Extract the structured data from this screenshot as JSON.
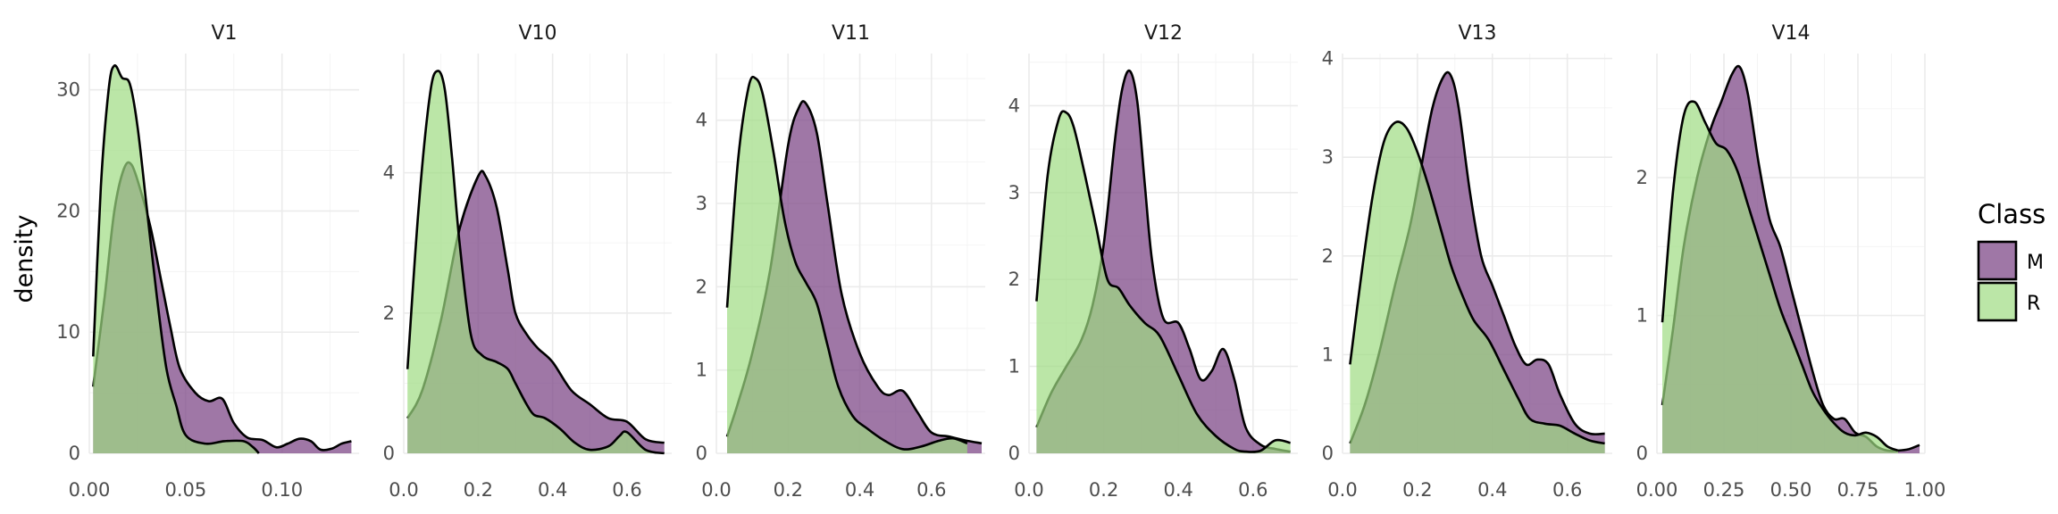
{
  "legend": {
    "title": "Class"
  },
  "ylabel": "density",
  "colors": {
    "M": "#7f4a88",
    "R": "#9edc81",
    "M_opacity": 0.75,
    "R_opacity": 0.7
  },
  "chart_data": [
    {
      "type": "area",
      "title": "V1",
      "xlim": [
        0,
        0.14
      ],
      "ylim": [
        0,
        33
      ],
      "xticks": [
        0,
        0.05,
        0.1
      ],
      "xticklabels": [
        "0.00",
        "0.05",
        "0.10"
      ],
      "yticks": [
        0,
        10,
        20,
        30
      ],
      "yticklabels": [
        "0",
        "10",
        "20",
        "30"
      ],
      "series": [
        {
          "name": "M",
          "x": [
            0.002,
            0.008,
            0.013,
            0.018,
            0.022,
            0.027,
            0.032,
            0.037,
            0.042,
            0.047,
            0.055,
            0.062,
            0.069,
            0.075,
            0.082,
            0.09,
            0.097,
            0.103,
            0.109,
            0.115,
            0.12,
            0.126,
            0.131,
            0.136
          ],
          "y": [
            5.5,
            13,
            20,
            23.5,
            23.8,
            21.5,
            18.5,
            14.5,
            10.5,
            7,
            5,
            4.3,
            4.5,
            2.5,
            1.3,
            1.1,
            0.5,
            0.8,
            1.2,
            1,
            0.3,
            0.4,
            0.8,
            1
          ]
        },
        {
          "name": "R",
          "x": [
            0.002,
            0.006,
            0.01,
            0.013,
            0.017,
            0.021,
            0.025,
            0.03,
            0.035,
            0.04,
            0.045,
            0.05,
            0.06,
            0.07,
            0.08,
            0.085,
            0.088
          ],
          "y": [
            8,
            22,
            30,
            32,
            31,
            30.5,
            27,
            20,
            13,
            7,
            4,
            1.5,
            0.8,
            1,
            1,
            0.5,
            0
          ]
        }
      ]
    },
    {
      "type": "area",
      "title": "V10",
      "xlim": [
        0,
        0.72
      ],
      "ylim": [
        0,
        5.7
      ],
      "xticks": [
        0,
        0.2,
        0.4,
        0.6
      ],
      "xticklabels": [
        "0.0",
        "0.2",
        "0.4",
        "0.6"
      ],
      "yticks": [
        0,
        2,
        4
      ],
      "yticklabels": [
        "0",
        "2",
        "4"
      ],
      "series": [
        {
          "name": "M",
          "x": [
            0.01,
            0.05,
            0.1,
            0.15,
            0.2,
            0.22,
            0.25,
            0.28,
            0.3,
            0.33,
            0.36,
            0.4,
            0.45,
            0.5,
            0.55,
            0.6,
            0.65,
            0.7
          ],
          "y": [
            0.5,
            0.9,
            1.9,
            3.2,
            3.95,
            3.95,
            3.5,
            2.6,
            2,
            1.7,
            1.5,
            1.3,
            0.9,
            0.7,
            0.5,
            0.45,
            0.2,
            0.15
          ]
        },
        {
          "name": "R",
          "x": [
            0.01,
            0.04,
            0.07,
            0.09,
            0.11,
            0.13,
            0.15,
            0.18,
            0.21,
            0.25,
            0.28,
            0.3,
            0.33,
            0.35,
            0.38,
            0.42,
            0.46,
            0.5,
            0.55,
            0.58,
            0.6,
            0.65,
            0.7
          ],
          "y": [
            1.2,
            3.5,
            5.1,
            5.45,
            5.2,
            4.2,
            3,
            1.7,
            1.4,
            1.3,
            1.2,
            1,
            0.7,
            0.55,
            0.5,
            0.35,
            0.15,
            0.05,
            0.1,
            0.25,
            0.3,
            0.05,
            0
          ]
        }
      ]
    },
    {
      "type": "area",
      "title": "V11",
      "xlim": [
        0,
        0.75
      ],
      "ylim": [
        0,
        4.8
      ],
      "xticks": [
        0,
        0.2,
        0.4,
        0.6
      ],
      "xticklabels": [
        "0.0",
        "0.2",
        "0.4",
        "0.6"
      ],
      "yticks": [
        0,
        1,
        2,
        3,
        4
      ],
      "yticklabels": [
        "0",
        "1",
        "2",
        "3",
        "4"
      ],
      "series": [
        {
          "name": "M",
          "x": [
            0.03,
            0.06,
            0.1,
            0.15,
            0.2,
            0.23,
            0.25,
            0.28,
            0.31,
            0.35,
            0.4,
            0.45,
            0.48,
            0.52,
            0.56,
            0.6,
            0.65,
            0.7,
            0.74
          ],
          "y": [
            0.2,
            0.6,
            1.2,
            2.2,
            3.7,
            4.15,
            4.2,
            3.85,
            3,
            1.9,
            1.2,
            0.8,
            0.7,
            0.75,
            0.5,
            0.25,
            0.2,
            0.15,
            0.12
          ]
        },
        {
          "name": "R",
          "x": [
            0.03,
            0.06,
            0.09,
            0.11,
            0.13,
            0.16,
            0.19,
            0.22,
            0.25,
            0.28,
            0.31,
            0.34,
            0.38,
            0.42,
            0.47,
            0.52,
            0.57,
            0.62,
            0.66,
            0.7
          ],
          "y": [
            1.75,
            3.5,
            4.4,
            4.5,
            4.3,
            3.6,
            2.8,
            2.3,
            2.05,
            1.8,
            1.3,
            0.8,
            0.45,
            0.3,
            0.15,
            0.05,
            0.08,
            0.15,
            0.18,
            0.12
          ]
        }
      ]
    },
    {
      "type": "area",
      "title": "V12",
      "xlim": [
        0,
        0.72
      ],
      "ylim": [
        0,
        4.6
      ],
      "xticks": [
        0,
        0.2,
        0.4,
        0.6
      ],
      "xticklabels": [
        "0.0",
        "0.2",
        "0.4",
        "0.6"
      ],
      "yticks": [
        0,
        1,
        2,
        3,
        4
      ],
      "yticklabels": [
        "0",
        "1",
        "2",
        "3",
        "4"
      ],
      "series": [
        {
          "name": "M",
          "x": [
            0.02,
            0.06,
            0.1,
            0.14,
            0.17,
            0.2,
            0.23,
            0.25,
            0.27,
            0.29,
            0.31,
            0.33,
            0.36,
            0.4,
            0.43,
            0.46,
            0.49,
            0.52,
            0.55,
            0.58,
            0.62,
            0.66,
            0.7
          ],
          "y": [
            0.3,
            0.7,
            1,
            1.3,
            1.7,
            2.4,
            3.6,
            4.2,
            4.4,
            4.05,
            3.1,
            2.2,
            1.55,
            1.5,
            1.2,
            0.85,
            0.95,
            1.2,
            0.85,
            0.3,
            0.1,
            0.05,
            0.02
          ]
        },
        {
          "name": "R",
          "x": [
            0.02,
            0.05,
            0.08,
            0.1,
            0.12,
            0.15,
            0.18,
            0.21,
            0.24,
            0.27,
            0.31,
            0.35,
            0.4,
            0.45,
            0.5,
            0.55,
            0.58,
            0.62,
            0.66,
            0.7
          ],
          "y": [
            1.75,
            3.2,
            3.85,
            3.92,
            3.75,
            3.2,
            2.6,
            2,
            1.9,
            1.7,
            1.5,
            1.35,
            0.9,
            0.45,
            0.2,
            0.05,
            0.02,
            0.03,
            0.15,
            0.12
          ]
        }
      ]
    },
    {
      "type": "area",
      "title": "V13",
      "xlim": [
        0,
        0.72
      ],
      "ylim": [
        0,
        4.05
      ],
      "xticks": [
        0,
        0.2,
        0.4,
        0.6
      ],
      "xticklabels": [
        "0.0",
        "0.2",
        "0.4",
        "0.6"
      ],
      "yticks": [
        0,
        1,
        2,
        3,
        4
      ],
      "yticklabels": [
        "0",
        "1",
        "2",
        "3",
        "4"
      ],
      "series": [
        {
          "name": "M",
          "x": [
            0.02,
            0.06,
            0.1,
            0.14,
            0.18,
            0.21,
            0.24,
            0.27,
            0.29,
            0.31,
            0.34,
            0.37,
            0.4,
            0.43,
            0.46,
            0.49,
            0.52,
            0.55,
            0.58,
            0.62,
            0.66,
            0.7
          ],
          "y": [
            0.1,
            0.5,
            1.05,
            1.7,
            2.3,
            2.9,
            3.5,
            3.82,
            3.82,
            3.5,
            2.65,
            2,
            1.7,
            1.4,
            1.1,
            0.9,
            0.95,
            0.9,
            0.6,
            0.3,
            0.2,
            0.2
          ]
        },
        {
          "name": "R",
          "x": [
            0.02,
            0.05,
            0.08,
            0.11,
            0.14,
            0.17,
            0.2,
            0.23,
            0.26,
            0.29,
            0.32,
            0.35,
            0.39,
            0.43,
            0.47,
            0.5,
            0.54,
            0.58,
            0.62,
            0.66,
            0.7
          ],
          "y": [
            0.9,
            1.8,
            2.6,
            3.15,
            3.35,
            3.3,
            3.05,
            2.7,
            2.3,
            1.9,
            1.6,
            1.35,
            1.15,
            0.85,
            0.55,
            0.35,
            0.3,
            0.28,
            0.2,
            0.13,
            0.1
          ]
        }
      ]
    },
    {
      "type": "area",
      "title": "V14",
      "xlim": [
        0,
        1.0
      ],
      "ylim": [
        0,
        2.9
      ],
      "xticks": [
        0,
        0.25,
        0.5,
        0.75,
        1.0
      ],
      "xticklabels": [
        "0.00",
        "0.25",
        "0.50",
        "0.75",
        "1.00"
      ],
      "yticks": [
        0,
        1,
        2
      ],
      "yticklabels": [
        "0",
        "1",
        "2"
      ],
      "series": [
        {
          "name": "M",
          "x": [
            0.02,
            0.06,
            0.1,
            0.15,
            0.2,
            0.24,
            0.28,
            0.31,
            0.34,
            0.38,
            0.42,
            0.46,
            0.5,
            0.54,
            0.58,
            0.62,
            0.66,
            0.7,
            0.74,
            0.78,
            0.82,
            0.86,
            0.9,
            0.94,
            0.98
          ],
          "y": [
            0.35,
            0.9,
            1.5,
            2,
            2.35,
            2.55,
            2.75,
            2.8,
            2.6,
            2.1,
            1.7,
            1.5,
            1.2,
            0.9,
            0.6,
            0.35,
            0.25,
            0.25,
            0.15,
            0.12,
            0.05,
            0.02,
            0.02,
            0.03,
            0.06
          ]
        },
        {
          "name": "R",
          "x": [
            0.02,
            0.06,
            0.1,
            0.14,
            0.18,
            0.22,
            0.26,
            0.3,
            0.34,
            0.38,
            0.42,
            0.46,
            0.5,
            0.54,
            0.58,
            0.62,
            0.66,
            0.7,
            0.74,
            0.78,
            0.82,
            0.86,
            0.9
          ],
          "y": [
            0.95,
            1.9,
            2.45,
            2.55,
            2.4,
            2.25,
            2.2,
            2.05,
            1.8,
            1.55,
            1.3,
            1.05,
            0.85,
            0.65,
            0.45,
            0.32,
            0.22,
            0.15,
            0.13,
            0.15,
            0.12,
            0.05,
            0.02
          ]
        }
      ]
    }
  ]
}
